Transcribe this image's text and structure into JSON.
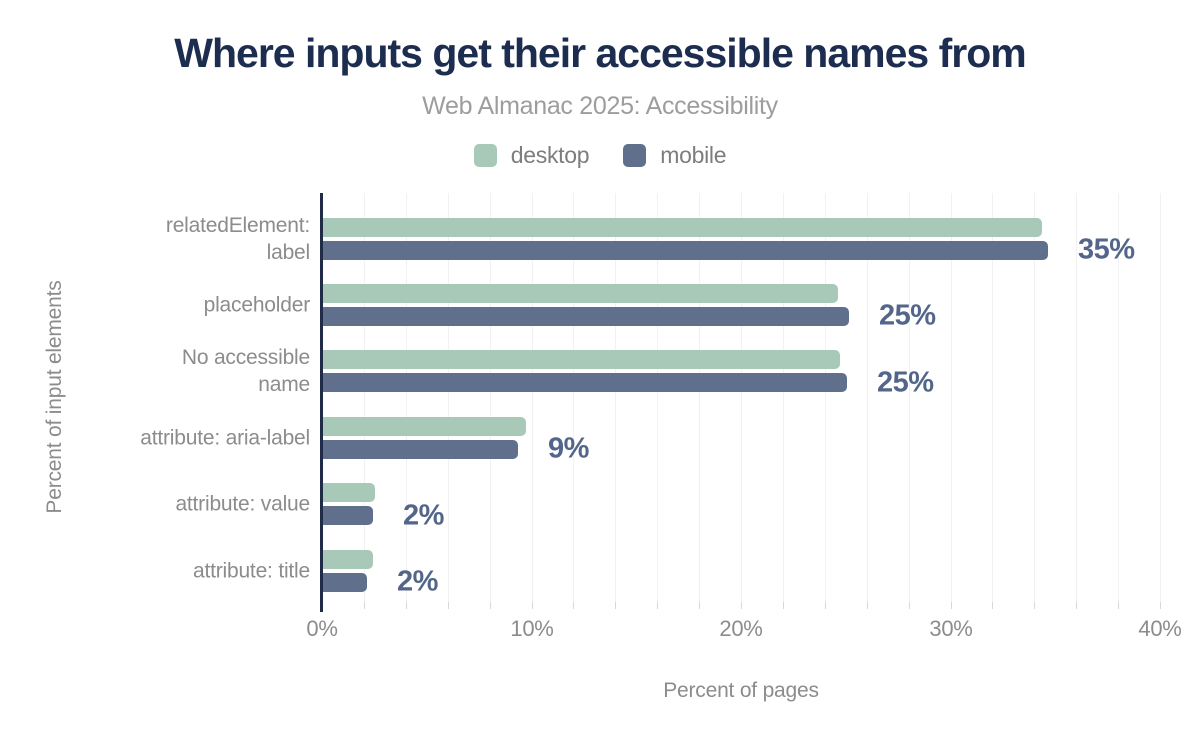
{
  "title": "Where inputs get their accessible names from",
  "subtitle": "Web Almanac 2025: Accessibility",
  "legend": [
    {
      "label": "desktop",
      "color": "#a8c9b7"
    },
    {
      "label": "mobile",
      "color": "#60708c"
    }
  ],
  "colors": {
    "title": "#1c2d4f",
    "subtitle": "#9d9d9d",
    "axis_text": "#8c8c8c",
    "value_label": "#53668a",
    "axis_line": "#202c47",
    "grid_line": "#f1f1f4",
    "desktop": "#a8c9b7",
    "mobile": "#60708c"
  },
  "chart_data": {
    "type": "bar",
    "orientation": "horizontal",
    "title": "Where inputs get their accessible names from",
    "subtitle": "Web Almanac 2025: Accessibility",
    "categories": [
      "relatedElement: label",
      "placeholder",
      "No accessible name",
      "attribute: aria-label",
      "attribute: value",
      "attribute: title"
    ],
    "category_lines": [
      [
        "relatedElement:",
        "label"
      ],
      [
        "placeholder"
      ],
      [
        "No accessible",
        "name"
      ],
      [
        "attribute: aria-label"
      ],
      [
        "attribute: value"
      ],
      [
        "attribute: title"
      ]
    ],
    "series": [
      {
        "name": "desktop",
        "color": "#a8c9b7",
        "values": [
          34.3,
          24.6,
          24.7,
          9.7,
          2.5,
          2.4
        ]
      },
      {
        "name": "mobile",
        "color": "#60708c",
        "values": [
          34.6,
          25.1,
          25.0,
          9.3,
          2.4,
          2.1
        ]
      }
    ],
    "value_labels": [
      "35%",
      "25%",
      "25%",
      "9%",
      "2%",
      "2%"
    ],
    "xlabel": "Percent of pages",
    "ylabel": "Percent of input elements",
    "xlim": [
      0,
      40
    ],
    "x_ticks": [
      "0%",
      "10%",
      "20%",
      "30%",
      "40%"
    ],
    "x_tick_values": [
      0,
      10,
      20,
      30,
      40
    ],
    "grid_step": 2,
    "grid": true,
    "legend_position": "top"
  }
}
